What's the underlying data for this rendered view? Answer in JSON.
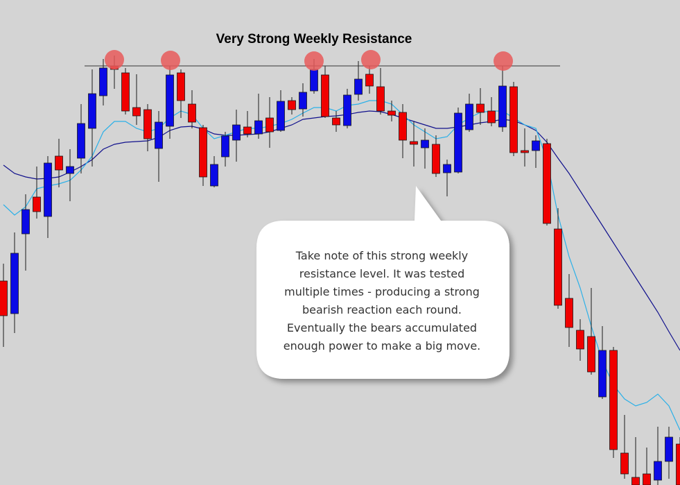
{
  "chart_data": {
    "type": "candlestick",
    "title": "Very Strong Weekly Resistance",
    "categories": [
      null,
      null,
      null,
      null,
      null,
      null,
      null,
      null,
      null,
      null,
      null,
      null,
      null,
      null,
      null,
      null,
      null,
      null,
      null,
      null,
      null,
      null,
      null,
      null,
      null,
      null,
      null,
      null,
      null,
      null,
      null,
      null,
      null,
      null,
      null,
      null,
      null,
      null,
      null,
      null,
      null,
      null,
      null,
      null,
      null,
      null,
      null,
      null,
      null,
      null,
      null,
      null,
      null,
      null,
      null,
      null,
      null,
      null,
      null,
      null,
      null,
      null
    ],
    "open": [
      294,
      247,
      362,
      415,
      387,
      474,
      449,
      471,
      514,
      561,
      604,
      594,
      544,
      541,
      485,
      517,
      594,
      549,
      515,
      431,
      473,
      497,
      516,
      506,
      529,
      511,
      554,
      542,
      568,
      591,
      529,
      518,
      563,
      592,
      574,
      539,
      537,
      495,
      486,
      491,
      450,
      451,
      512,
      549,
      539,
      516,
      574,
      482,
      482,
      492,
      369,
      269,
      223,
      214,
      127,
      194,
      46,
      11,
      16,
      7,
      34,
      59
    ],
    "high": [
      319,
      364,
      419,
      459,
      474,
      499,
      484,
      549,
      599,
      614,
      619,
      601,
      592,
      549,
      539,
      604,
      599,
      569,
      519,
      474,
      509,
      541,
      539,
      564,
      559,
      569,
      559,
      579,
      614,
      604,
      539,
      571,
      611,
      604,
      601,
      554,
      549,
      524,
      514,
      504,
      469,
      544,
      564,
      572,
      559,
      604,
      581,
      514,
      504,
      499,
      399,
      304,
      239,
      284,
      229,
      199,
      101,
      69,
      54,
      84,
      84,
      69
    ],
    "low": [
      199,
      219,
      309,
      384,
      356,
      429,
      409,
      449,
      459,
      547,
      571,
      534,
      519,
      481,
      437,
      499,
      529,
      514,
      431,
      429,
      459,
      466,
      501,
      499,
      486,
      509,
      534,
      531,
      564,
      529,
      509,
      514,
      554,
      564,
      534,
      524,
      471,
      459,
      456,
      444,
      416,
      449,
      509,
      519,
      517,
      509,
      474,
      459,
      457,
      374,
      254,
      199,
      179,
      159,
      124,
      39,
      9,
      0,
      0,
      0,
      9,
      0
    ],
    "close": [
      244,
      334,
      397,
      394,
      464,
      454,
      459,
      521,
      564,
      601,
      599,
      539,
      532,
      499,
      523,
      591,
      554,
      523,
      444,
      462,
      503,
      519,
      506,
      525,
      509,
      553,
      541,
      566,
      599,
      531,
      519,
      562,
      585,
      575,
      539,
      533,
      497,
      491,
      497,
      449,
      462,
      536,
      549,
      537,
      522,
      575,
      479,
      479,
      496,
      377,
      259,
      227,
      196,
      163,
      194,
      51,
      16,
      0,
      0,
      34,
      69,
      0
    ],
    "up_color": "#0a0ae6",
    "down_color": "#f00000",
    "lines": [
      {
        "color": "#10108c",
        "values": [
          461,
          449,
          444,
          441,
          442,
          444,
          451,
          459,
          469,
          484,
          491,
          494,
          495,
          496,
          501,
          511,
          516,
          517,
          513,
          506,
          504,
          504,
          505,
          506,
          509,
          514,
          519,
          527,
          529,
          531,
          532,
          534,
          537,
          539,
          538,
          534,
          529,
          524,
          519,
          514,
          514,
          516,
          519,
          522,
          524,
          527,
          525,
          519,
          511,
          494,
          471,
          449,
          424,
          399,
          374,
          349,
          324,
          299,
          274,
          249,
          221,
          194
        ]
      },
      {
        "color": "#2ab0e8",
        "values": [
          404,
          389,
          401,
          427,
          431,
          434,
          439,
          454,
          474,
          509,
          524,
          524,
          514,
          509,
          514,
          529,
          539,
          534,
          514,
          499,
          504,
          509,
          514,
          514,
          517,
          521,
          527,
          536,
          544,
          544,
          539,
          547,
          549,
          554,
          554,
          549,
          534,
          519,
          509,
          499,
          502,
          519,
          529,
          537,
          539,
          539,
          529,
          519,
          514,
          469,
          389,
          329,
          284,
          229,
          179,
          144,
          124,
          114,
          119,
          131,
          114,
          79
        ]
      }
    ],
    "resistance": 604,
    "ylim": [
      0,
      699
    ],
    "annotation": [
      "Take note of this strong weekly",
      "resistance level. It was tested",
      "multiple times - producing a strong",
      "bearish reaction each round.",
      "Eventually the bears accumulated",
      "enough power to make a big move."
    ]
  }
}
